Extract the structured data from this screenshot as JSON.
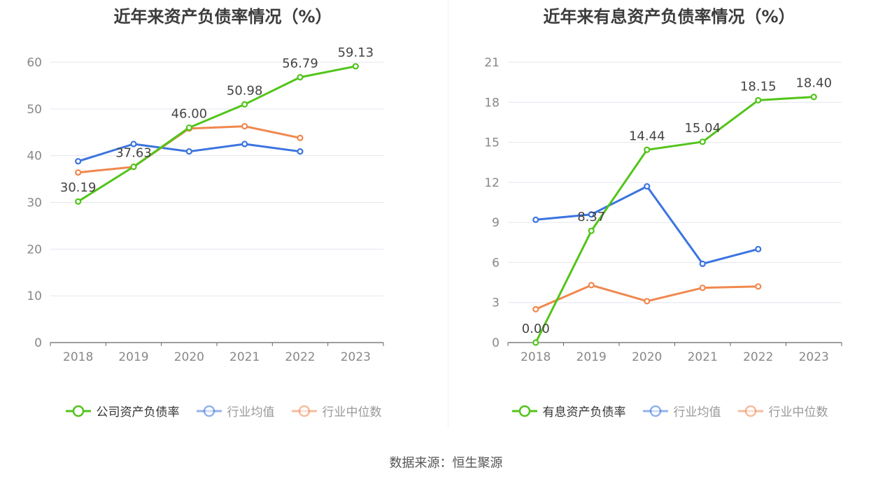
{
  "source": "数据来源：恒生聚源",
  "chart_data": [
    {
      "type": "line",
      "title": "近年来资产负债率情况（%）",
      "categories": [
        "2018",
        "2019",
        "2020",
        "2021",
        "2022",
        "2023"
      ],
      "ylim": [
        0,
        60
      ],
      "yticks": [
        0,
        10,
        20,
        30,
        40,
        50,
        60
      ],
      "grid": true,
      "legend_position": "bottom",
      "series": [
        {
          "name": "公司资产负债率",
          "color": "#52c41a",
          "values": [
            30.19,
            37.63,
            46.0,
            50.98,
            56.79,
            59.13
          ],
          "labels": [
            "30.19",
            "37.63",
            "46.00",
            "50.98",
            "56.79",
            "59.13"
          ],
          "legend_active": true
        },
        {
          "name": "行业均值",
          "color": "#3b74e0",
          "values": [
            38.8,
            42.5,
            40.9,
            42.5,
            40.9,
            null
          ],
          "legend_active": false
        },
        {
          "name": "行业中位数",
          "color": "#f0884f",
          "values": [
            36.4,
            37.6,
            45.8,
            46.3,
            43.8,
            null
          ],
          "legend_active": false
        }
      ]
    },
    {
      "type": "line",
      "title": "近年来有息资产负债率情况（%）",
      "categories": [
        "2018",
        "2019",
        "2020",
        "2021",
        "2022",
        "2023"
      ],
      "ylim": [
        0,
        21
      ],
      "yticks": [
        0,
        3,
        6,
        9,
        12,
        15,
        18,
        21
      ],
      "grid": true,
      "legend_position": "bottom",
      "series": [
        {
          "name": "有息资产负债率",
          "color": "#52c41a",
          "values": [
            0.0,
            8.37,
            14.44,
            15.04,
            18.15,
            18.4
          ],
          "labels": [
            "0.00",
            "8.37",
            "14.44",
            "15.04",
            "18.15",
            "18.40"
          ],
          "legend_active": true
        },
        {
          "name": "行业均值",
          "color": "#3b74e0",
          "values": [
            9.2,
            9.6,
            11.7,
            5.9,
            7.0,
            null
          ],
          "legend_active": false
        },
        {
          "name": "行业中位数",
          "color": "#f0884f",
          "values": [
            2.5,
            4.3,
            3.1,
            4.1,
            4.2,
            null
          ],
          "legend_active": false
        }
      ]
    }
  ]
}
